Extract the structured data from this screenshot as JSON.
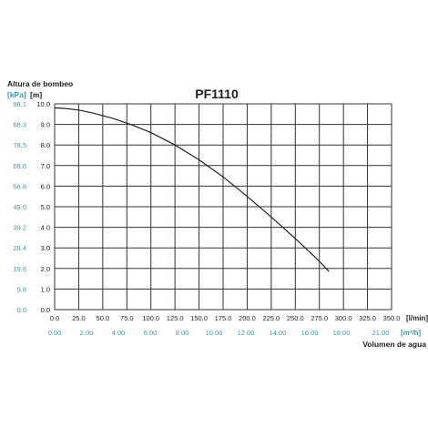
{
  "chart_data": {
    "type": "line",
    "title": "PF1110",
    "y_axis_title": "Altura de bombeo",
    "y_units": {
      "secondary": "[kPa]",
      "primary": "[m]"
    },
    "x_units": {
      "primary": "[l/min]",
      "secondary": "[m³/h]"
    },
    "x_axis_title": "Volumen de agua",
    "xlim": [
      0,
      350
    ],
    "ylim": [
      0,
      10
    ],
    "grid": true,
    "x_ticks": [
      "0.0",
      "25.0",
      "50.0",
      "75.0",
      "100.0",
      "125.0",
      "150.0",
      "175.0",
      "200.0",
      "225.0",
      "250.0",
      "275.0",
      "300.0",
      "325.0",
      "350.0"
    ],
    "x2_ticks": [
      "0.00",
      "2.00",
      "4.00",
      "6.00",
      "8.00",
      "10.00",
      "12.00",
      "14.00",
      "16.00",
      "18.00",
      "21.00"
    ],
    "y_ticks": [
      "0.0",
      "1.0",
      "2.0",
      "3.0",
      "4.0",
      "5.0",
      "6.0",
      "7.0",
      "8.0",
      "9.0",
      "10.0"
    ],
    "y2_ticks": [
      "0.0",
      "9.8",
      "19.6",
      "29.4",
      "39.2",
      "49.0",
      "58.8",
      "68.6",
      "78.5",
      "88.3",
      "98.1"
    ],
    "series": [
      {
        "x": [
          0,
          10,
          25,
          40,
          60,
          80,
          100,
          125,
          150,
          175,
          200,
          225,
          250,
          275,
          285
        ],
        "y": [
          9.8,
          9.78,
          9.7,
          9.55,
          9.3,
          8.98,
          8.6,
          8.0,
          7.28,
          6.45,
          5.5,
          4.5,
          3.45,
          2.35,
          1.85
        ]
      }
    ],
    "colors": {
      "grid": "#333333",
      "curve": "#222222",
      "primary_text": "#222222",
      "secondary_text": "#3a9aa6"
    }
  }
}
